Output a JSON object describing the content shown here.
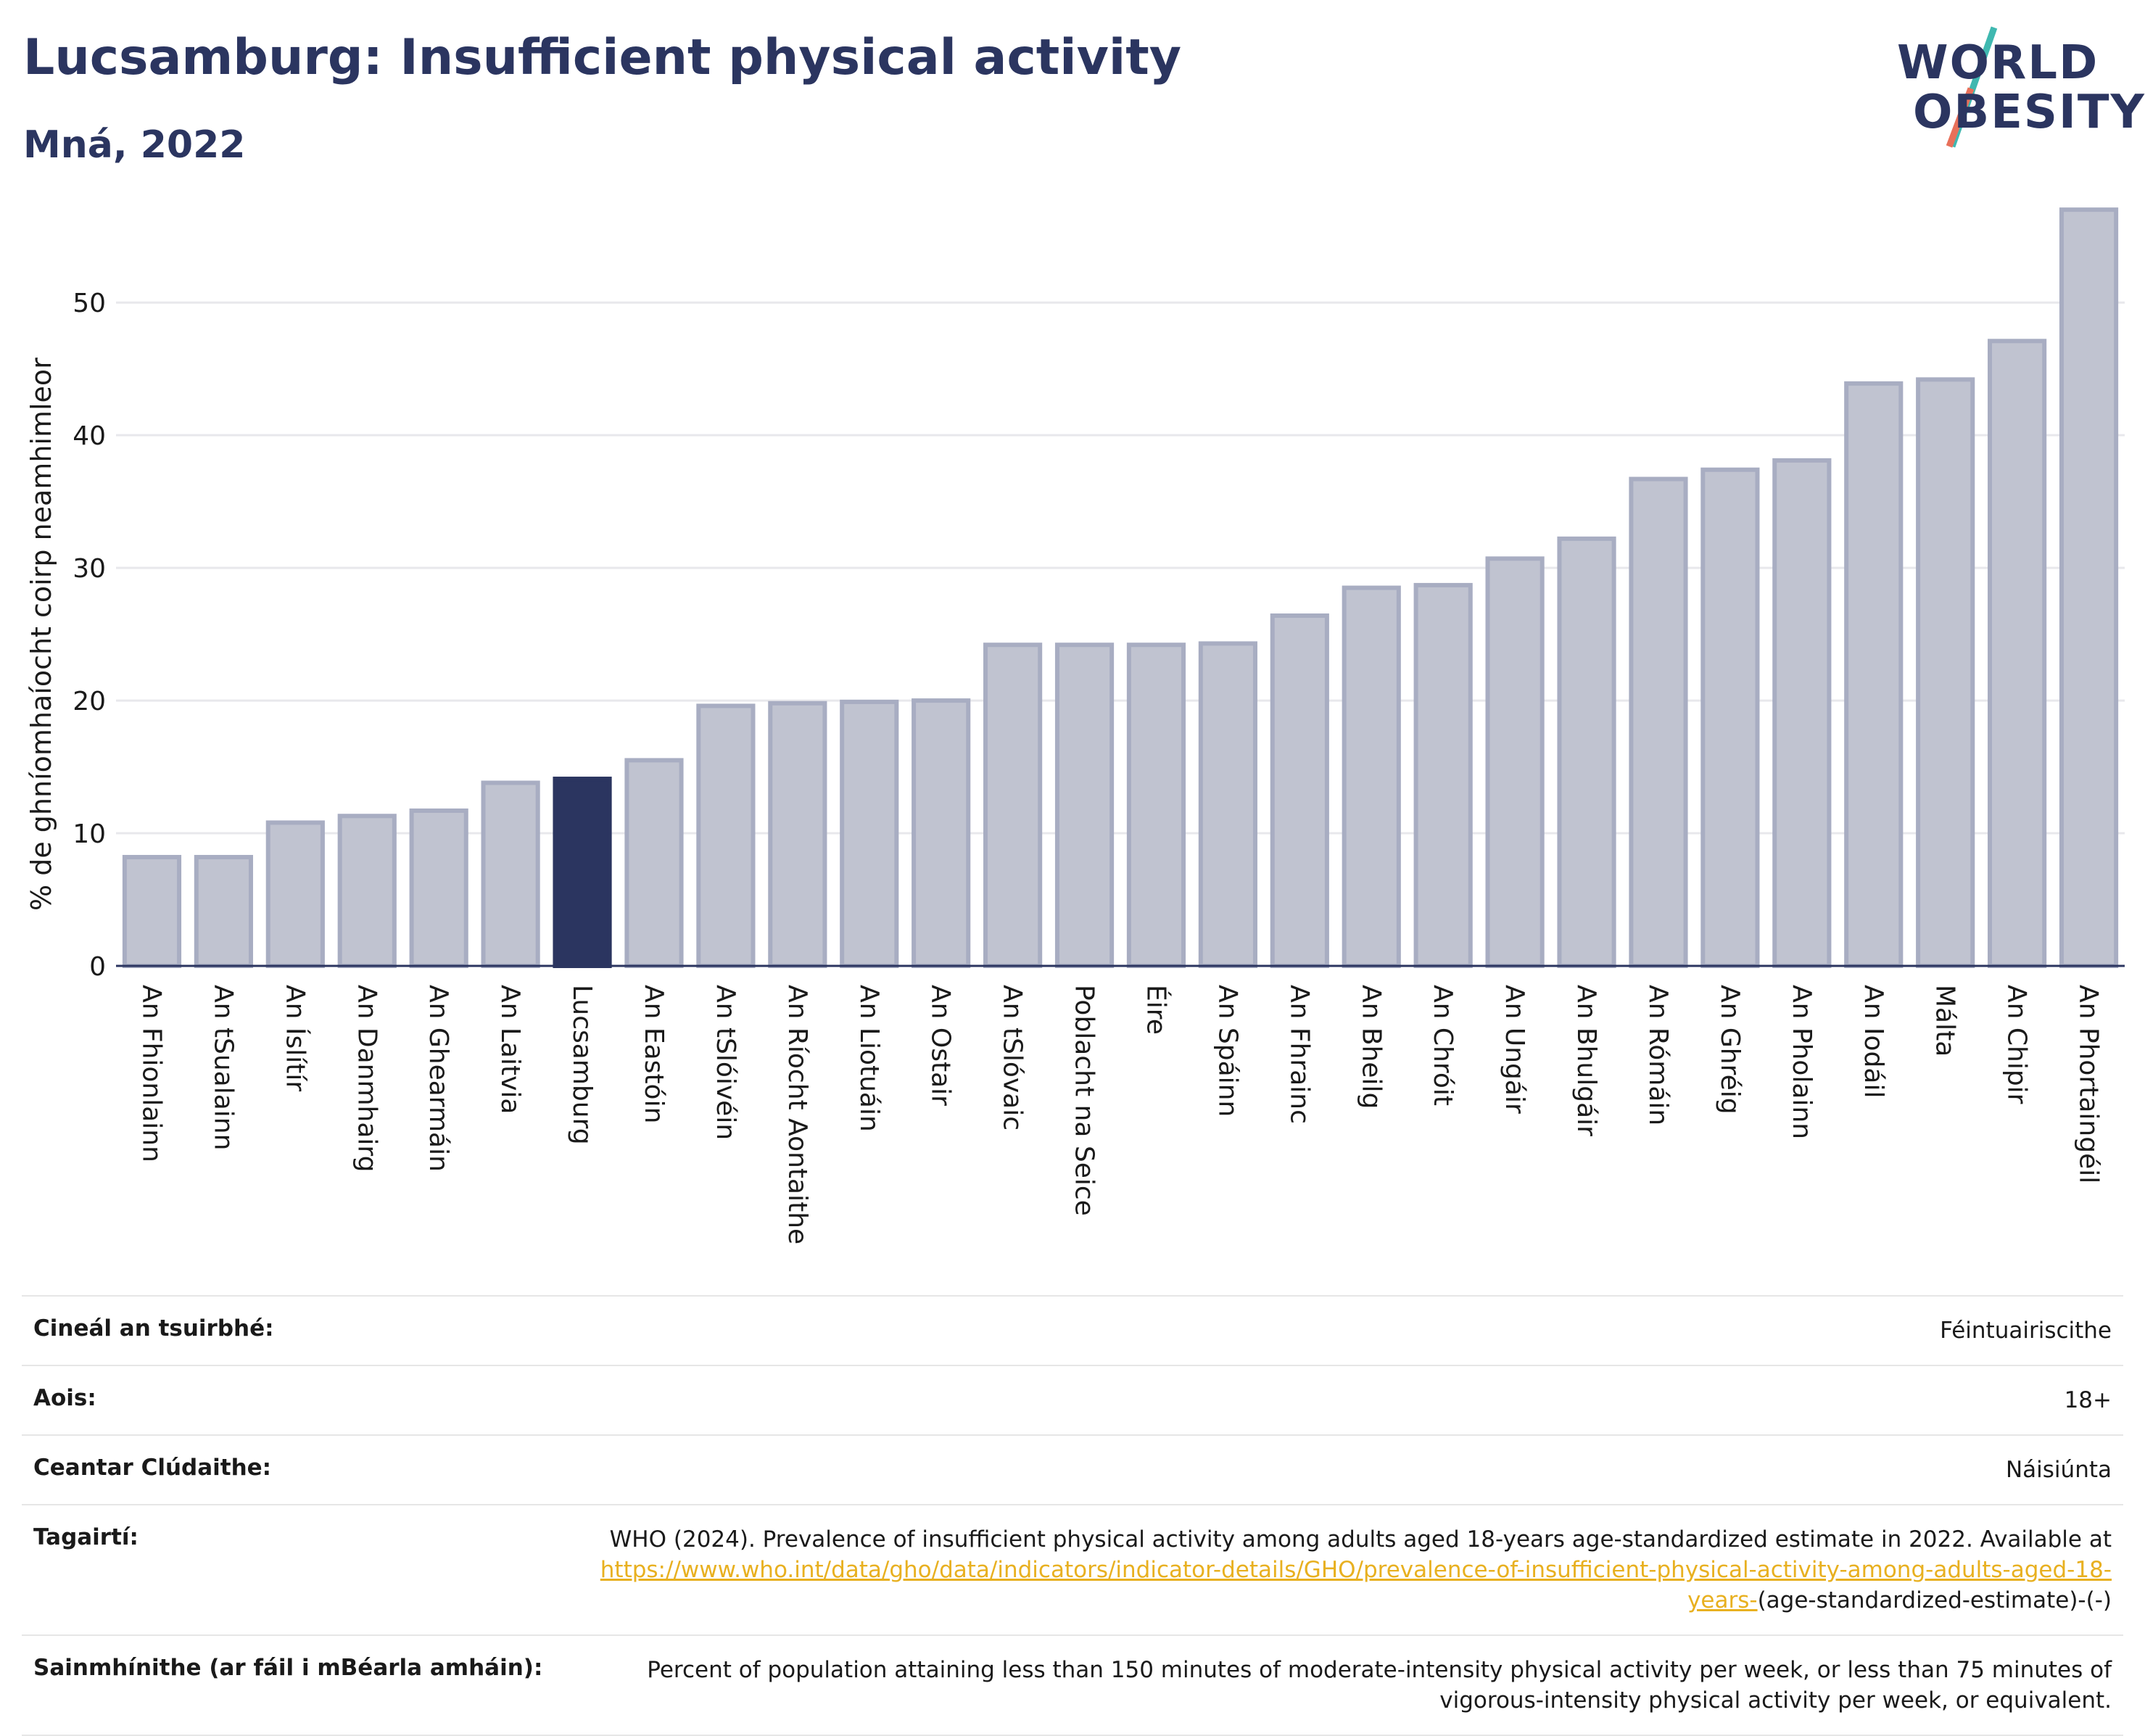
{
  "header": {
    "title": "Lucsamburg: Insufficient physical activity",
    "subtitle": "Mná, 2022"
  },
  "logo": {
    "line1": "WORLD",
    "line2": "OBESITY"
  },
  "colors": {
    "highlight": "#2b3560",
    "bar": "#c0c3d0",
    "bar_edge": "#a8adc2",
    "text": "#2b3560"
  },
  "chart_data": {
    "type": "bar",
    "ylabel": "% de ghníomhaíocht coirp neamhimleor",
    "xlabel": "",
    "ylim": [
      0,
      57.5
    ],
    "yticks": [
      0,
      10,
      20,
      30,
      40,
      50
    ],
    "grid": true,
    "highlight": "Lucsamburg",
    "categories": [
      "An Fhionlainn",
      "An tSualainn",
      "An Íslítír",
      "An Danmhairg",
      "An Ghearmáin",
      "An Laitvia",
      "Lucsamburg",
      "An Eastóin",
      "An tSlóivéin",
      "An Ríocht Aontaithe",
      "An Liotuáin",
      "An Ostair",
      "An tSlóvaic",
      "Poblacht na Seice",
      "Éire",
      "An Spáinn",
      "An Fhrainc",
      "An Bheilg",
      "An Chróit",
      "An Ungáir",
      "An Bhulgáir",
      "An Rómáin",
      "An Ghréig",
      "An Pholainn",
      "An Iodáil",
      "Málta",
      "An Chipir",
      "An Phortaingéil"
    ],
    "values": [
      8.2,
      8.2,
      10.8,
      11.3,
      11.7,
      13.8,
      14.1,
      15.5,
      19.6,
      19.8,
      19.9,
      20.0,
      24.2,
      24.2,
      24.2,
      24.3,
      26.4,
      28.5,
      28.7,
      30.7,
      32.2,
      36.7,
      37.4,
      38.1,
      43.9,
      44.2,
      47.1,
      57.0
    ]
  },
  "meta": {
    "rows": [
      {
        "label": "Cineál an tsuirbhé:",
        "value": "Féintuairiscithe"
      },
      {
        "label": "Aois:",
        "value": "18+"
      },
      {
        "label": "Ceantar Clúdaithe:",
        "value": "Náisiúnta"
      }
    ],
    "references": {
      "label": "Tagairtí:",
      "text": "WHO (2024). Prevalence of insufficient physical activity among adults aged 18-years age-standardized estimate in 2022. Available at ",
      "link": "https://www.who.int/data/gho/data/indicators/indicator-details/GHO/prevalence-of-insufficient-physical-activity-among-adults-aged-18-years-",
      "suffix": "(age-standardized-estimate)-(-)"
    },
    "definitions": {
      "label": "Sainmhínithe (ar fáil i mBéarla amháin):",
      "value": "Percent of population attaining less than 150 minutes of moderate-intensity physical activity per week, or less than 75 minutes of vigorous-intensity physical activity per week, or equivalent."
    }
  }
}
